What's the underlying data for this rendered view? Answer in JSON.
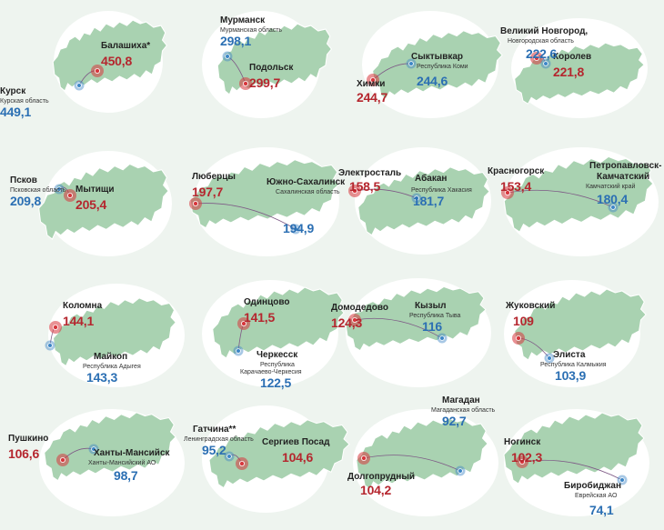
{
  "colors": {
    "map_fill": "#a9d2b1",
    "map_edge": "#ffffff",
    "circle": "#ffffff",
    "red_marker": "#d7373d",
    "blue_marker": "#3d86c6",
    "red_text": "#b5262e",
    "blue_text": "#2b6fb3"
  },
  "panels": [
    {
      "red": {
        "name": "Балашиха*",
        "value": "450,8"
      },
      "blue": {
        "name": "Курск",
        "region": "Курская область",
        "value": "449,1"
      }
    },
    {
      "red": {
        "name": "Подольск",
        "value": "299,7"
      },
      "blue": {
        "name": "Мурманск",
        "region": "Мурманская область",
        "value": "298,1"
      }
    },
    {
      "red": {
        "name": "Химки",
        "value": "244,7"
      },
      "blue": {
        "name": "Сыктывкар",
        "region": "Республика Коми",
        "value": "244,6"
      }
    },
    {
      "red": {
        "name": "Королев",
        "value": "221,8"
      },
      "blue": {
        "name": "Великий Новгород,",
        "region": "Новгородская область",
        "value": "222,6"
      }
    },
    {
      "red": {
        "name": "Мытищи",
        "value": "205,4"
      },
      "blue": {
        "name": "Псков",
        "region": "Псковская область",
        "value": "209,8"
      }
    },
    {
      "red": {
        "name": "Люберцы",
        "value": "197,7"
      },
      "blue": {
        "name": "Южно-Сахалинск",
        "region": "Сахалинская область",
        "value": "194,9"
      }
    },
    {
      "red": {
        "name": "Электросталь",
        "value": "158,5"
      },
      "blue": {
        "name": "Абакан",
        "region": "Республика Хакасия",
        "value": "181,7"
      }
    },
    {
      "red": {
        "name": "Красногорск",
        "value": "153,4"
      },
      "blue": {
        "name": "Петропавловск-",
        "name2": "Камчатский",
        "region": "Камчатский край",
        "value": "180,4"
      }
    },
    {
      "red": {
        "name": "Коломна",
        "value": "144,1"
      },
      "blue": {
        "name": "Майкоп",
        "region": "Республика Адыгея",
        "value": "143,3"
      }
    },
    {
      "red": {
        "name": "Одинцово",
        "value": "141,5"
      },
      "blue": {
        "name": "Черкесск",
        "region": "Республика",
        "region2": "Карачаево-Черкесия",
        "value": "122,5"
      }
    },
    {
      "red": {
        "name": "Домодедово",
        "value": "124,3"
      },
      "blue": {
        "name": "Кызыл",
        "region": "Республика Тыва",
        "value": "116"
      }
    },
    {
      "red": {
        "name": "Жуковский",
        "value": "109"
      },
      "blue": {
        "name": "Элиста",
        "region": "Республика Калмыкия",
        "value": "103,9"
      }
    },
    {
      "red": {
        "name": "Пушкино",
        "value": "106,6"
      },
      "blue": {
        "name": "Ханты-Мансийск",
        "region": "Ханты-Мансийский АО",
        "value": "98,7"
      }
    },
    {
      "red": {
        "name": "Сергиев Посад",
        "value": "104,6"
      },
      "blue": {
        "name": "Гатчина**",
        "region": "Ленинградская область",
        "value": "95,2"
      }
    },
    {
      "red": {
        "name": "Долгопрудный",
        "value": "104,2"
      },
      "blue": {
        "name": "Магадан",
        "region": "Магаданская область",
        "value": "92,7"
      }
    },
    {
      "red": {
        "name": "Ногинск",
        "value": "102,3"
      },
      "blue": {
        "name": "Биробиджан",
        "region": "Еврейская АО",
        "value": "74,1"
      }
    }
  ]
}
